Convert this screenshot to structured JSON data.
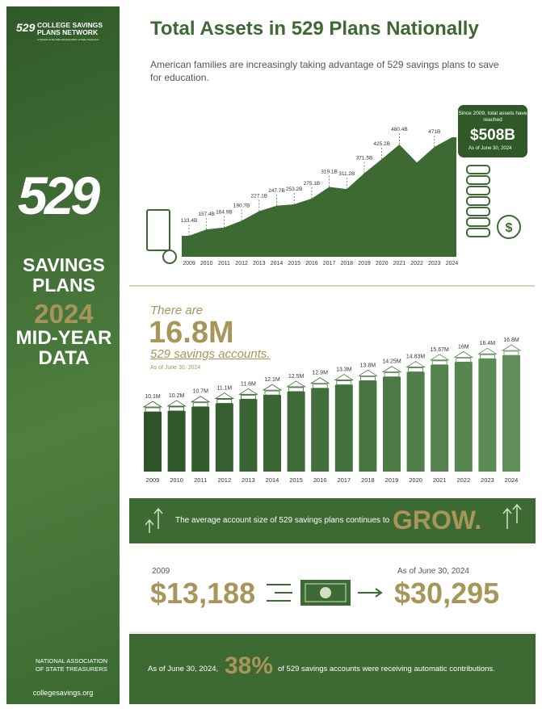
{
  "sidebar": {
    "network_name": "COLLEGE SAVINGS PLANS NETWORK",
    "network_tagline": "A Network of the National Association of State Treasurers",
    "logo": "529",
    "heading_1": "SAVINGS PLANS",
    "heading_year": "2024",
    "heading_2": "MID-YEAR DATA",
    "association": "NATIONAL ASSOCIATION OF STATE TREASURERS",
    "website": "collegesavings.org"
  },
  "title": "Total Assets in 529 Plans Nationally",
  "subtitle": "American families are increasingly taking advantage of 529 savings plans to save for education.",
  "chart_data": [
    {
      "type": "area",
      "categories": [
        "2009",
        "2010",
        "2011",
        "2012",
        "2013",
        "2014",
        "2015",
        "2016",
        "2017",
        "2018",
        "2019",
        "2020",
        "2021",
        "2022",
        "2023",
        "2024"
      ],
      "values": [
        133.4,
        157.4,
        164.9,
        190.7,
        227.1,
        247.7,
        253.2,
        275.1,
        319.1,
        311.2,
        371.5,
        425.2,
        480.4,
        412,
        471,
        508
      ],
      "value_labels": [
        "133.4B",
        "157.4B",
        "164.9B",
        "190.7B",
        "227.1B",
        "247.7B",
        "253.2B",
        "275.1B",
        "319.1B",
        "311.2B",
        "371.5B",
        "425.2B",
        "480.4B",
        null,
        "471B",
        null
      ],
      "color": "#3c6a32"
    },
    {
      "type": "bar",
      "categories": [
        "2009",
        "2010",
        "2011",
        "2012",
        "2013",
        "2014",
        "2015",
        "2016",
        "2017",
        "2018",
        "2019",
        "2020",
        "2021",
        "2022",
        "2023",
        "2024"
      ],
      "values": [
        10.1,
        10.2,
        10.7,
        11.1,
        11.6,
        12.1,
        12.5,
        12.9,
        13.3,
        13.8,
        14.25,
        14.83,
        15.67,
        16,
        16.4,
        16.8
      ],
      "value_labels": [
        "10.1M",
        "10.2M",
        "10.7M",
        "11.1M",
        "11.6M",
        "12.1M",
        "12.5M",
        "12.9M",
        "13.3M",
        "13.8M",
        "14.25M",
        "14.83M",
        "15.67M",
        "16M",
        "16.4M",
        "16.8M"
      ],
      "colors": [
        "#2c5426",
        "#2f5829",
        "#325c2c",
        "#355f2f",
        "#386332",
        "#3b6735",
        "#3e6a38",
        "#416e3b",
        "#44723e",
        "#487641",
        "#4b7a44",
        "#4f7e48",
        "#53824c",
        "#578750",
        "#5c8b55",
        "#61905a"
      ]
    }
  ],
  "callout": {
    "text": "Since 2009, total assets have reached",
    "amount": "$508B",
    "date": "As of June 30, 2024"
  },
  "accounts": {
    "intro": "There are",
    "count": "16.8M",
    "label": "529 savings accounts.",
    "date": "As of June 30, 2024"
  },
  "banner": {
    "text": "The average account size of 529 savings plans continues to",
    "emphasis": "GROW."
  },
  "comparison": {
    "start_label": "2009",
    "start_value": "$13,188",
    "end_label": "As of June 30, 2024",
    "end_value": "$30,295"
  },
  "footer": {
    "lead": "As of June 30, 2024,",
    "percent": "38%",
    "text": "of 529 savings accounts were receiving automatic contributions."
  }
}
